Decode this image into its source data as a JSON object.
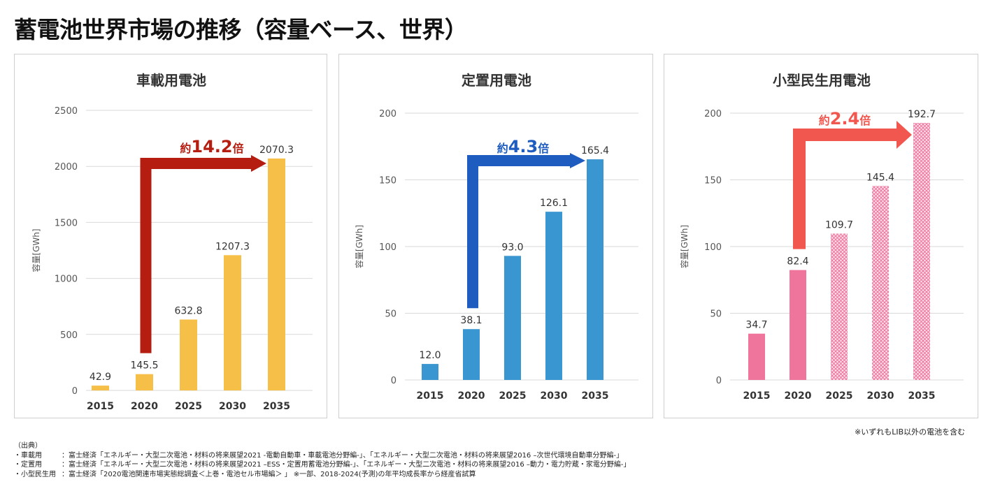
{
  "page": {
    "title": "蓄電池世界市場の推移（容量ベース、世界）",
    "note": "※いずれもLIB以外の電池を含む"
  },
  "sources": {
    "header": "（出典）",
    "rows": [
      {
        "label": "・車載用",
        "colon": "：",
        "text": "富士経済「エネルギー・大型二次電池・材料の将来展望2021 -電動自動車・車載電池分野編-」、「エネルギー・大型二次電池・材料の将来展望2016 –次世代環境自動車分野編-」"
      },
      {
        "label": "・定置用",
        "colon": "：",
        "text": "富士経済「エネルギー・大型二次電池・材料の将来展望2021 –ESS・定置用蓄電池分野編-」、「エネルギー・大型二次電池・材料の将来展望2016 –動力・電力貯蔵・家電分野編-」"
      },
      {
        "label": "・小型民生用",
        "colon": "：",
        "text": "富士経済「2020電池関連市場実態総調査＜上巻・電池セル市場編＞ 」 ※一部、2018-2024(予測)の年平均成長率から経産省試算"
      }
    ]
  },
  "chart_data": [
    {
      "type": "bar",
      "title": "車載用電池",
      "ylabel": "容量[GWh]",
      "categories": [
        "2015",
        "2020",
        "2025",
        "2030",
        "2035"
      ],
      "values": [
        42.9,
        145.5,
        632.8,
        1207.3,
        2070.3
      ],
      "value_labels": [
        "42.9",
        "145.5",
        "632.8",
        "1207.3",
        "2070.3"
      ],
      "ylim": [
        0,
        2500
      ],
      "yticks": [
        "0",
        "500",
        "1000",
        "1500",
        "2000",
        "2500"
      ],
      "bar_colors": [
        "#f6bf47",
        "#f6bf47",
        "#f6bf47",
        "#f6bf47",
        "#f6bf47"
      ],
      "patterned": [
        false,
        false,
        false,
        false,
        false
      ],
      "growth": {
        "prefix": "約",
        "value": "14.2",
        "suffix": "倍",
        "color": "#b51d11",
        "from_index": 1,
        "to_index": 4
      }
    },
    {
      "type": "bar",
      "title": "定置用電池",
      "ylabel": "容量[GWh]",
      "categories": [
        "2015",
        "2020",
        "2025",
        "2030",
        "2035"
      ],
      "values": [
        12.0,
        38.1,
        93.0,
        126.1,
        165.4
      ],
      "value_labels": [
        "12.0",
        "38.1",
        "93.0",
        "126.1",
        "165.4"
      ],
      "ylim": [
        0,
        200
      ],
      "yticks": [
        "0",
        "50",
        "100",
        "150",
        "200"
      ],
      "bar_colors": [
        "#3a96d0",
        "#3a96d0",
        "#3a96d0",
        "#3a96d0",
        "#3a96d0"
      ],
      "patterned": [
        false,
        false,
        false,
        false,
        false
      ],
      "growth": {
        "prefix": "約",
        "value": "4.3",
        "suffix": "倍",
        "color": "#1f5cc0",
        "from_index": 1,
        "to_index": 4
      }
    },
    {
      "type": "bar",
      "title": "小型民生用電池",
      "ylabel": "容量[GWh]",
      "categories": [
        "2015",
        "2020",
        "2025",
        "2030",
        "2035"
      ],
      "values": [
        34.7,
        82.4,
        109.7,
        145.4,
        192.7
      ],
      "value_labels": [
        "34.7",
        "82.4",
        "109.7",
        "145.4",
        "192.7"
      ],
      "ylim": [
        0,
        200
      ],
      "yticks": [
        "0",
        "50",
        "100",
        "150",
        "200"
      ],
      "bar_colors": [
        "#f0759d",
        "#f0759d",
        "#f0759d",
        "#f0759d",
        "#f0759d"
      ],
      "patterned": [
        false,
        false,
        true,
        true,
        true
      ],
      "growth": {
        "prefix": "約",
        "value": "2.4",
        "suffix": "倍",
        "color": "#f2574f",
        "from_index": 1,
        "to_index": 4
      }
    }
  ]
}
